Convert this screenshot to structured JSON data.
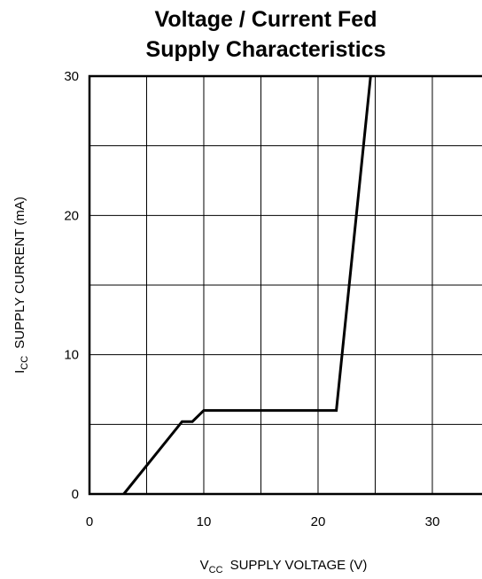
{
  "chart_data": {
    "type": "line",
    "title_lines": [
      "Voltage / Current Fed",
      "Supply Characteristics"
    ],
    "xlabel": {
      "prefix": "V",
      "subscript": "CC",
      "text": "SUPPLY VOLTAGE   (V)"
    },
    "ylabel": {
      "prefix": "I",
      "subscript": "CC",
      "text": "SUPPLY CURRENT   (mA)"
    },
    "xlim": [
      0,
      34.5
    ],
    "ylim": [
      0,
      30
    ],
    "x_ticks": [
      0,
      10,
      20,
      30
    ],
    "y_ticks": [
      0,
      10,
      20,
      30
    ],
    "x_tick_labels": [
      "0",
      "10",
      "20",
      "30"
    ],
    "y_tick_labels": [
      "0",
      "10",
      "20",
      "30"
    ],
    "x_grid": [
      0,
      5,
      10,
      15,
      20,
      25,
      30
    ],
    "y_grid": [
      0,
      5,
      10,
      15,
      20,
      25,
      30
    ],
    "grid": true,
    "series": [
      {
        "x": [
          3.0,
          8.1,
          9.0,
          10.0,
          21.6,
          24.6
        ],
        "y": [
          0,
          5.2,
          5.2,
          6.0,
          6.0,
          30
        ]
      }
    ]
  }
}
